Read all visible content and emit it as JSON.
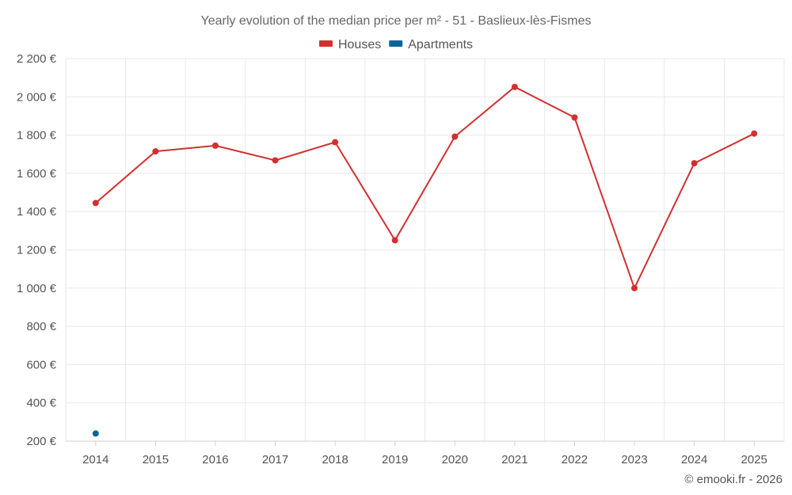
{
  "chart_data": {
    "type": "line",
    "title": "Yearly evolution of the median price per m² - 51 - Baslieux-lès-Fismes",
    "categories": [
      "2014",
      "2015",
      "2016",
      "2017",
      "2018",
      "2019",
      "2020",
      "2021",
      "2022",
      "2023",
      "2024",
      "2025"
    ],
    "series": [
      {
        "name": "Houses",
        "color": "#d32f2f",
        "values": [
          1445,
          1715,
          1745,
          1668,
          1763,
          1250,
          1792,
          2052,
          1892,
          1000,
          1653,
          1808
        ]
      },
      {
        "name": "Apartments",
        "color": "#0a6496",
        "values": [
          240,
          null,
          null,
          null,
          null,
          null,
          null,
          null,
          null,
          null,
          null,
          null
        ]
      }
    ],
    "ylim": [
      200,
      2200
    ],
    "yticks": [
      200,
      400,
      600,
      800,
      1000,
      1200,
      1400,
      1600,
      1800,
      2000,
      2200
    ],
    "ytick_labels": [
      "200 €",
      "400 €",
      "600 €",
      "800 €",
      "1 000 €",
      "1 200 €",
      "1 400 €",
      "1 600 €",
      "1 800 €",
      "2 000 €",
      "2 200 €"
    ],
    "xlabel": "",
    "ylabel": "",
    "grid": true,
    "legend_position": "top-center"
  },
  "credit": "© emooki.fr - 2026"
}
